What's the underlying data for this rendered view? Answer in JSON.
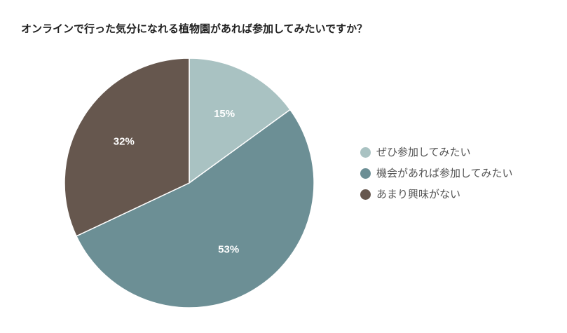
{
  "chart_data": {
    "type": "pie",
    "title": "オンラインで行った気分になれる植物園があれば参加してみたいですか？",
    "categories": [
      "ぜひ参加してみたい",
      "機会があれば参加してみたい",
      "あまり興味がない"
    ],
    "values": [
      15,
      53,
      32
    ],
    "data_labels": [
      "15%",
      "53%",
      "32%"
    ],
    "colors": [
      "#a9c2c2",
      "#6c8f95",
      "#66574e"
    ],
    "legend_position": "right"
  }
}
